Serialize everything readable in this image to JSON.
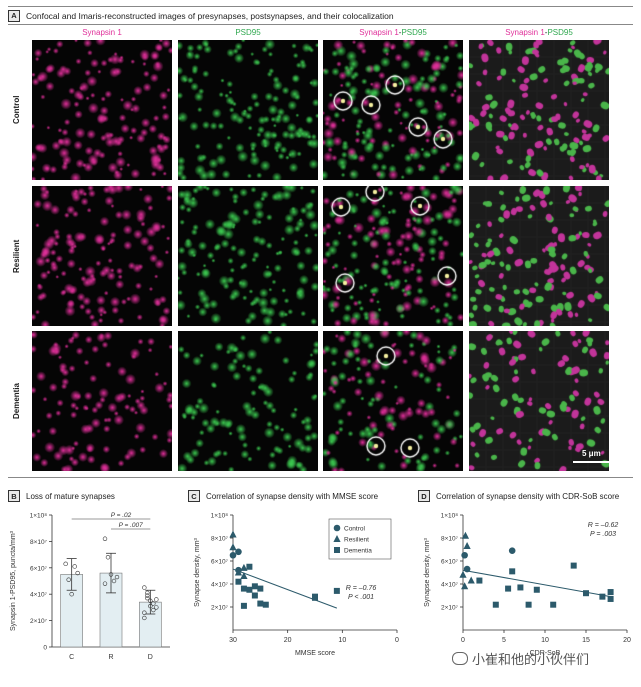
{
  "panelA": {
    "letter": "A",
    "title": "Confocal and Imaris-reconstructed images of presynapses, postsynapses, and their colocalization",
    "columns": [
      {
        "label": "Synapsin 1",
        "color": "#e0309a"
      },
      {
        "label": "PSD95",
        "color": "#2fa84f"
      },
      {
        "label_a": "Synapsin 1",
        "label_sep": "-",
        "label_b": "PSD95"
      },
      {
        "label_a": "Synapsin 1",
        "label_sep": "-",
        "label_b": "PSD95"
      }
    ],
    "rows": [
      "Control",
      "Resilient",
      "Dementia"
    ],
    "scale_bar": "5 μm"
  },
  "panelB": {
    "letter": "B",
    "title": "Loss of mature synapses",
    "ylabel": "Synapsin 1-PSD95, puncta/mm³",
    "p1": "P = .02",
    "p2": "P = .007"
  },
  "panelC": {
    "letter": "C",
    "title": "Correlation of synapse density with MMSE score",
    "xlabel": "MMSE score",
    "ylabel": "Synapse density, mm³",
    "stat_r": "R = –0.76",
    "stat_p": "P < .001",
    "legend": [
      "Control",
      "Resilient",
      "Dementia"
    ]
  },
  "panelD": {
    "letter": "D",
    "title": "Correlation of synapse density with CDR-SoB score",
    "xlabel": "CDR-SoB",
    "ylabel": "Synapse density, mm³",
    "stat_r": "R = –0.62",
    "stat_p": "P = .003"
  },
  "watermark": "小崔和他的小伙伴们",
  "colors": {
    "magenta": "#e0309a",
    "green": "#2fa84f",
    "bar": "#e3eef2",
    "dementia": "#2c5a6b",
    "point": "#2c5a6b"
  },
  "chart_data": [
    {
      "type": "bar",
      "title": "Loss of mature synapses",
      "ylabel": "Synapsin 1-PSD95, puncta/mm³",
      "categories": [
        "C",
        "R",
        "D"
      ],
      "values": [
        55000000.0,
        56000000.0,
        34000000.0
      ],
      "error": [
        12000000.0,
        15000000.0,
        9000000.0
      ],
      "points": [
        [
          63000000.0,
          51000000.0,
          40000000.0,
          61000000.0,
          56000000.0
        ],
        [
          82000000.0,
          68000000.0,
          55000000.0,
          50000000.0,
          53000000.0,
          48000000.0
        ],
        [
          45000000.0,
          37000000.0,
          35000000.0,
          33000000.0,
          30000000.0,
          26000000.0,
          39000000.0,
          31000000.0,
          28000000.0,
          36000000.0,
          22000000.0,
          41000000.0
        ]
      ],
      "yticks": [
        "0",
        "2×10⁷",
        "4×10⁷",
        "6×10⁷",
        "8×10⁷",
        "1×10⁸"
      ],
      "ylim": [
        0,
        100000000.0
      ],
      "annotations": [
        "P = .02",
        "P = .007"
      ]
    },
    {
      "type": "scatter",
      "title": "Correlation of synapse density with MMSE score",
      "xlabel": "MMSE score",
      "ylabel": "Synapse density, mm³",
      "xlim": [
        30,
        0
      ],
      "ylim": [
        0,
        100000000.0
      ],
      "xticks": [
        "30",
        "20",
        "10",
        "0"
      ],
      "yticks": [
        "2×10⁷",
        "4×10⁷",
        "6×10⁷",
        "8×10⁷",
        "1×10⁸"
      ],
      "series": [
        {
          "name": "Control",
          "marker": "circle",
          "points": [
            [
              30,
              65000000.0
            ],
            [
              29,
              52000000.0
            ],
            [
              29,
              68000000.0
            ]
          ]
        },
        {
          "name": "Resilient",
          "marker": "triangle",
          "points": [
            [
              30,
              83000000.0
            ],
            [
              30,
              72000000.0
            ],
            [
              29,
              50000000.0
            ],
            [
              28,
              54000000.0
            ],
            [
              28,
              47000000.0
            ]
          ]
        },
        {
          "name": "Dementia",
          "marker": "square",
          "points": [
            [
              29,
              42000000.0
            ],
            [
              28,
              36000000.0
            ],
            [
              28,
              21000000.0
            ],
            [
              27,
              35000000.0
            ],
            [
              27,
              55000000.0
            ],
            [
              26,
              38000000.0
            ],
            [
              26,
              30000000.0
            ],
            [
              25,
              23000000.0
            ],
            [
              25,
              36000000.0
            ],
            [
              24,
              22000000.0
            ],
            [
              15,
              29000000.0
            ],
            [
              15,
              28000000.0
            ],
            [
              11,
              34000000.0
            ]
          ]
        }
      ],
      "fit": [
        [
          30,
          53000000.0
        ],
        [
          11,
          19000000.0
        ]
      ],
      "stat_r": "R = –0.76",
      "stat_p": "P < .001"
    },
    {
      "type": "scatter",
      "title": "Correlation of synapse density with CDR-SoB score",
      "xlabel": "CDR-SoB",
      "ylim": [
        0,
        100000000.0
      ],
      "xlim": [
        0,
        20
      ],
      "xticks": [
        "0",
        "5",
        "10",
        "15",
        "20"
      ],
      "yticks": [
        "2×10⁷",
        "4×10⁷",
        "6×10⁷",
        "8×10⁷",
        "1×10⁸"
      ],
      "series": [
        {
          "name": "Control",
          "marker": "circle",
          "points": [
            [
              0.5,
              53000000.0
            ],
            [
              0.2,
              65000000.0
            ],
            [
              6,
              69000000.0
            ]
          ]
        },
        {
          "name": "Resilient",
          "marker": "triangle",
          "points": [
            [
              0.3,
              82000000.0
            ],
            [
              0.5,
              73000000.0
            ],
            [
              0,
              48000000.0
            ],
            [
              0.2,
              38000000.0
            ],
            [
              1,
              43000000.0
            ]
          ]
        },
        {
          "name": "Dementia",
          "marker": "square",
          "points": [
            [
              2,
              43000000.0
            ],
            [
              4,
              22000000.0
            ],
            [
              5.5,
              36000000.0
            ],
            [
              6,
              51000000.0
            ],
            [
              7,
              37000000.0
            ],
            [
              8,
              22000000.0
            ],
            [
              9,
              35000000.0
            ],
            [
              11,
              22000000.0
            ],
            [
              13.5,
              56000000.0
            ],
            [
              15,
              32000000.0
            ],
            [
              17,
              29000000.0
            ],
            [
              18,
              27000000.0
            ],
            [
              18,
              33000000.0
            ]
          ]
        }
      ],
      "fit": [
        [
          0,
          52000000.0
        ],
        [
          18,
          29000000.0
        ]
      ],
      "stat_r": "R = –0.62",
      "stat_p": "P = .003"
    }
  ]
}
